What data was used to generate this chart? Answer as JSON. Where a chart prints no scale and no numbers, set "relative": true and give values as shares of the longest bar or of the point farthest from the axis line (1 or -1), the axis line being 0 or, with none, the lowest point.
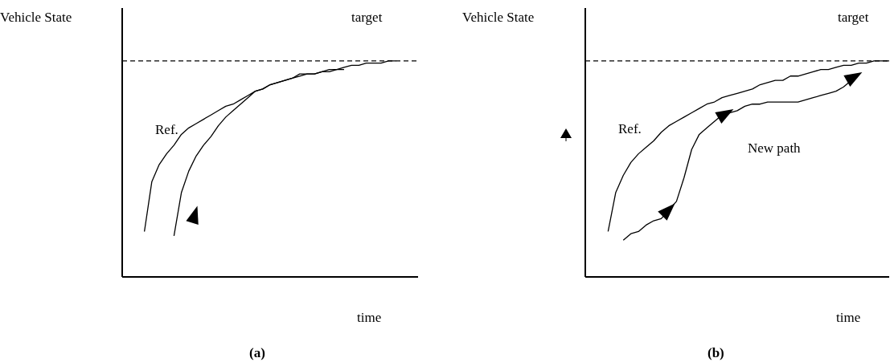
{
  "chart_data": [
    {
      "type": "line",
      "title": "(a)",
      "xlabel": "time",
      "ylabel": "Vehicle State",
      "relative": true,
      "grid": false,
      "legend": false,
      "marker": "none",
      "line_style": "solid",
      "categories": [
        null,
        null,
        null,
        null,
        null,
        null,
        null,
        null,
        null,
        null,
        null,
        null,
        null,
        null,
        null,
        null,
        null,
        null,
        null,
        null,
        null,
        null,
        null,
        null,
        null,
        null,
        null,
        null,
        null,
        null,
        null,
        null,
        null,
        null,
        null,
        null,
        null,
        null,
        null,
        null,
        null
      ],
      "series": [
        {
          "name": "Ref.",
          "color": "#000000",
          "values": [
            null,
            null,
            null,
            0.21,
            0.44,
            0.52,
            0.57,
            0.61,
            0.66,
            0.69,
            0.71,
            0.73,
            0.75,
            0.77,
            0.79,
            0.8,
            0.82,
            0.84,
            0.86,
            0.87,
            0.89,
            0.9,
            0.91,
            0.92,
            0.93,
            0.94,
            0.94,
            0.95,
            0.96,
            0.96,
            0.97,
            0.98,
            0.98,
            0.99,
            0.99,
            0.99,
            1.0,
            1.0,
            null,
            null,
            null
          ]
        },
        {
          "color": "#000000",
          "values": [
            null,
            null,
            null,
            null,
            null,
            null,
            null,
            0.19,
            0.39,
            0.49,
            0.56,
            0.61,
            0.65,
            0.7,
            0.74,
            0.77,
            0.8,
            0.83,
            0.86,
            0.87,
            0.89,
            0.9,
            0.91,
            0.92,
            0.94,
            0.94,
            0.94,
            0.95,
            0.95,
            0.96,
            0.96,
            null,
            null,
            null,
            null,
            null,
            null,
            null,
            null,
            null,
            null
          ]
        }
      ],
      "ref_lines": [
        {
          "axis": "y",
          "value": 1.0,
          "label": "target",
          "color": "#000000",
          "line_style": "dashed"
        }
      ]
    },
    {
      "type": "line",
      "title": "(b)",
      "xlabel": "time",
      "ylabel": "Vehicle State",
      "relative": true,
      "grid": false,
      "legend": false,
      "marker": "none",
      "line_style": "solid",
      "categories": [
        null,
        null,
        null,
        null,
        null,
        null,
        null,
        null,
        null,
        null,
        null,
        null,
        null,
        null,
        null,
        null,
        null,
        null,
        null,
        null,
        null,
        null,
        null,
        null,
        null,
        null,
        null,
        null,
        null,
        null,
        null,
        null,
        null,
        null,
        null,
        null,
        null,
        null,
        null,
        null,
        null
      ],
      "series": [
        {
          "name": "Ref.",
          "color": "#000000",
          "values": [
            null,
            null,
            null,
            0.21,
            0.39,
            0.47,
            0.53,
            0.57,
            0.6,
            0.63,
            0.67,
            0.7,
            0.72,
            0.74,
            0.76,
            0.78,
            0.8,
            0.81,
            0.83,
            0.84,
            0.85,
            0.86,
            0.87,
            0.89,
            0.9,
            0.91,
            0.91,
            0.93,
            0.93,
            0.94,
            0.95,
            0.96,
            0.96,
            0.97,
            0.98,
            0.98,
            0.99,
            0.99,
            1.0,
            1.0,
            1.0
          ]
        },
        {
          "name": "New path",
          "color": "#000000",
          "values": [
            null,
            null,
            null,
            null,
            null,
            0.17,
            0.2,
            0.21,
            0.24,
            0.26,
            0.27,
            0.31,
            0.35,
            0.46,
            0.59,
            0.66,
            0.69,
            0.72,
            0.75,
            0.76,
            0.77,
            0.79,
            0.8,
            0.8,
            0.81,
            0.81,
            0.81,
            0.81,
            0.81,
            0.82,
            0.83,
            0.84,
            0.85,
            0.86,
            0.88,
            0.91,
            0.94,
            null,
            null,
            null,
            null
          ]
        }
      ],
      "ref_lines": [
        {
          "axis": "y",
          "value": 1.0,
          "label": "target",
          "color": "#000000",
          "line_style": "dashed"
        }
      ]
    }
  ]
}
